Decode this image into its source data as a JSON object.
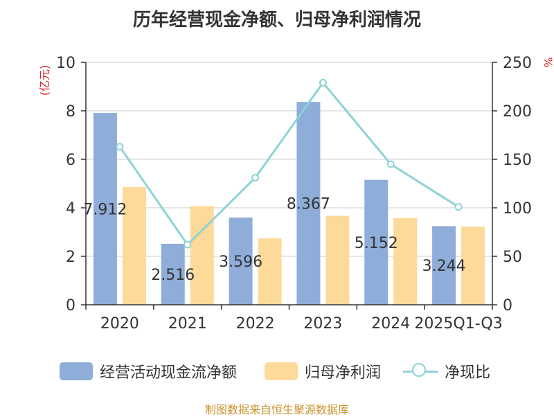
{
  "title": "历年经营现金净额、归母净利润情况",
  "source": "制图数据来自恒生聚源数据库",
  "chart_data": {
    "type": "bar",
    "categories": [
      "2020",
      "2021",
      "2022",
      "2023",
      "2024",
      "2025Q1-Q3"
    ],
    "y_left_label": "(亿元)",
    "y_right_label": "%",
    "ylim_left": [
      0,
      10
    ],
    "ylim_right": [
      0,
      250
    ],
    "yticks_left": [
      0,
      2,
      4,
      6,
      8,
      10
    ],
    "yticks_right": [
      0,
      50,
      100,
      150,
      200,
      250
    ],
    "grid": true,
    "legend_position": "bottom",
    "series": [
      {
        "name": "经营活动现金流净额",
        "type": "bar",
        "axis": "left",
        "color": "#8eadd9",
        "values": [
          7.912,
          2.516,
          3.596,
          8.367,
          5.152,
          3.244
        ],
        "labels": [
          "7.912",
          "2.516",
          "3.596",
          "8.367",
          "5.152",
          "3.244"
        ]
      },
      {
        "name": "归母净利润",
        "type": "bar",
        "axis": "left",
        "color": "#fdd99a",
        "values": [
          4.86,
          4.07,
          2.74,
          3.67,
          3.58,
          3.22
        ]
      },
      {
        "name": "净现比",
        "type": "line",
        "axis": "right",
        "color": "#8dd3d6",
        "values": [
          163,
          62,
          131,
          229,
          145,
          101
        ]
      }
    ]
  }
}
